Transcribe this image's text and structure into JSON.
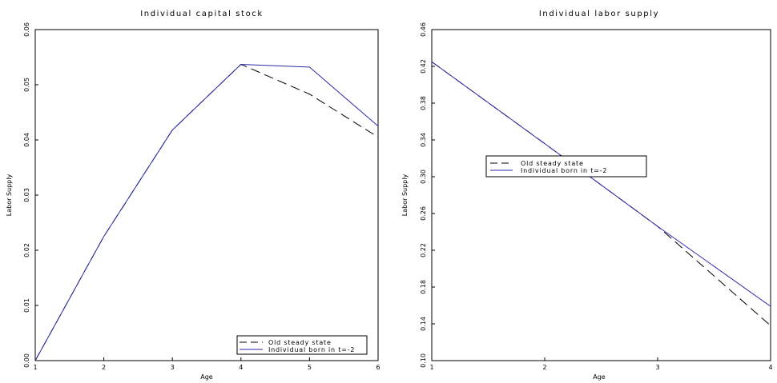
{
  "chart_data": [
    {
      "type": "line",
      "title": "Individual capital stock",
      "xlabel": "Age",
      "ylabel": "Labor Supply",
      "xlim": [
        1,
        6
      ],
      "ylim": [
        0.0,
        0.06
      ],
      "xticks": [
        "1",
        "2",
        "3",
        "4",
        "5",
        "6"
      ],
      "yticks": [
        "0.00",
        "0.01",
        "0.02",
        "0.03",
        "0.04",
        "0.05",
        "0.06"
      ],
      "grid": false,
      "legend_position": "bottom-right",
      "x": [
        1,
        2,
        3,
        4,
        5,
        6
      ],
      "series": [
        {
          "name": "Old steady state",
          "style": "dashed",
          "color": "#000000",
          "values": [
            0.0,
            0.0225,
            0.0418,
            0.0537,
            0.0483,
            0.0405
          ]
        },
        {
          "name": "Individual born in t=-2",
          "style": "solid",
          "color": "#2a2aa8",
          "values": [
            0.0,
            0.0225,
            0.0418,
            0.0537,
            0.0532,
            0.0425
          ]
        }
      ]
    },
    {
      "type": "line",
      "title": "Individual labor supply",
      "xlabel": "Age",
      "ylabel": "Labor Supply",
      "xlim": [
        1,
        4
      ],
      "ylim": [
        0.1,
        0.46
      ],
      "xticks": [
        "1",
        "2",
        "3",
        "4"
      ],
      "yticks": [
        "0.10",
        "0.14",
        "0.18",
        "0.22",
        "0.26",
        "0.30",
        "0.34",
        "0.38",
        "0.42",
        "0.46"
      ],
      "grid": false,
      "legend_position": "upper-middle",
      "x": [
        1,
        2,
        3,
        4
      ],
      "series": [
        {
          "name": "Old steady state",
          "style": "dashed",
          "color": "#000000",
          "values": [
            0.425,
            0.336,
            0.246,
            0.138
          ]
        },
        {
          "name": "Individual born in t=-2",
          "style": "solid",
          "color": "#2a2aa8",
          "values": [
            0.425,
            0.336,
            0.246,
            0.159
          ]
        }
      ]
    }
  ]
}
